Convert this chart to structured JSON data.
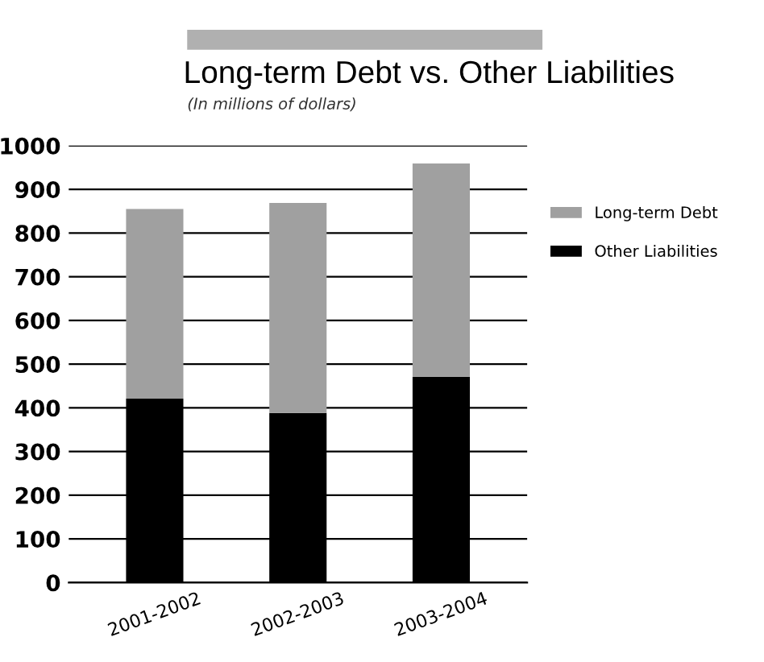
{
  "chart_data": {
    "type": "bar",
    "title": "Long-term Debt vs. Other Liabilities",
    "subtitle": "(In millions of dollars)",
    "categories": [
      "2001-2002",
      "2002-2003",
      "2003-2004"
    ],
    "stacked": true,
    "series": [
      {
        "name": "Other Liabilities",
        "color": "#000000",
        "values": [
          421,
          388,
          471
        ]
      },
      {
        "name": "Long-term Debt",
        "color": "#a0a0a0",
        "values": [
          434,
          481,
          488
        ]
      }
    ],
    "ylim": [
      0,
      1000
    ],
    "yticks": [
      0,
      100,
      200,
      300,
      400,
      500,
      600,
      700,
      800,
      900,
      1000
    ],
    "grid": "y",
    "legend": "right"
  }
}
